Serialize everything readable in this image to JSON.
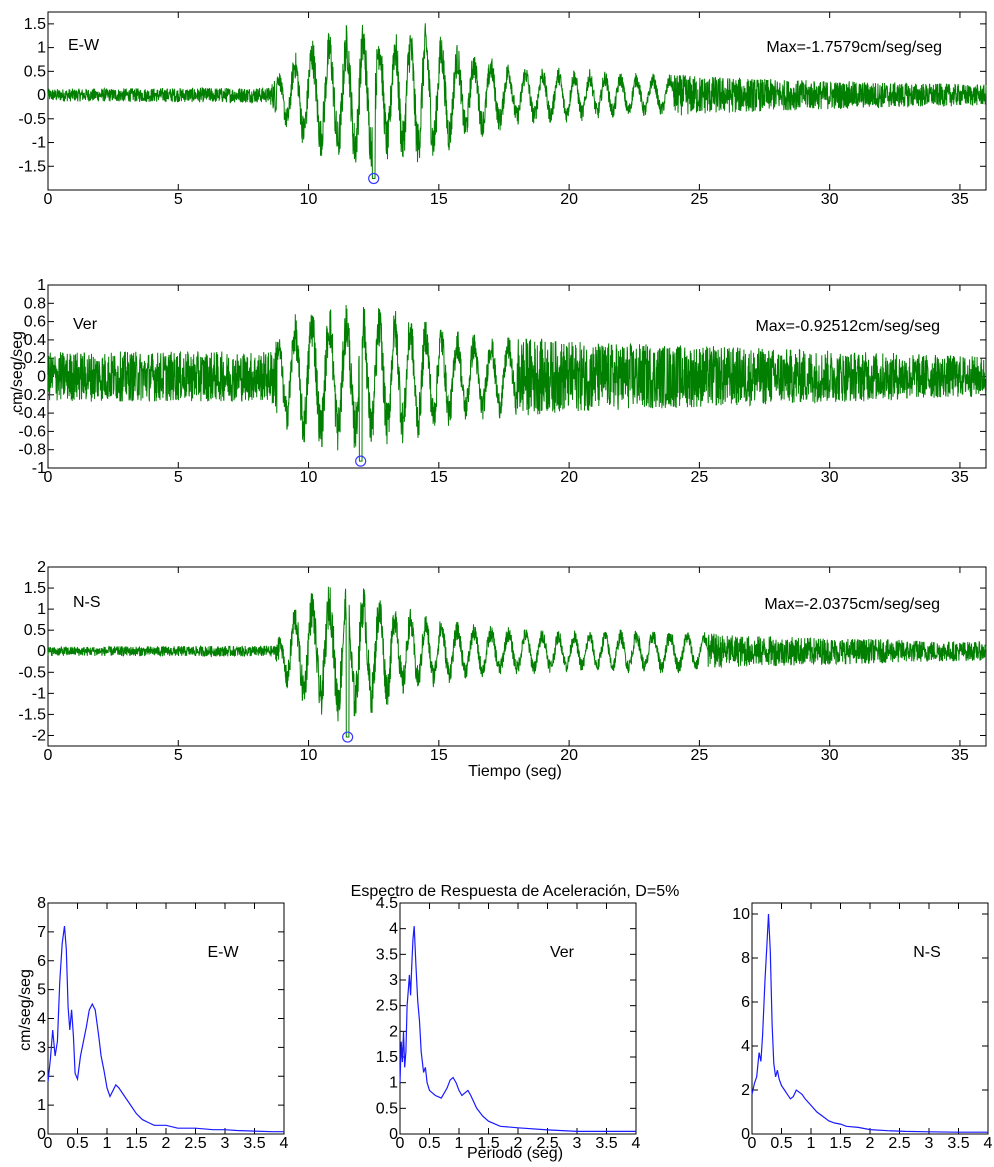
{
  "colors": {
    "trace": "#007f00",
    "spectrum": "#1a1aff",
    "marker": "#3a3aff",
    "axes": "#000000"
  },
  "chart_data": [
    {
      "type": "line",
      "panel": "E-W",
      "label": "E-W",
      "max_text": "Max=-1.7579cm/seg/seg",
      "xlim": [
        0,
        36
      ],
      "ylim": [
        -2,
        1.75
      ],
      "x_ticks": [
        "0",
        "5",
        "10",
        "15",
        "20",
        "25",
        "30",
        "35"
      ],
      "y_ticks": [
        "1.5",
        "1",
        "0.5",
        "0",
        "-0.5",
        "-1",
        "-1.5"
      ],
      "envelope": [
        [
          0,
          0.12
        ],
        [
          8.5,
          0.15
        ],
        [
          9,
          0.6
        ],
        [
          10,
          1.1
        ],
        [
          11,
          1.3
        ],
        [
          12,
          1.45
        ],
        [
          13,
          1.3
        ],
        [
          14.5,
          1.4
        ],
        [
          16,
          0.9
        ],
        [
          18,
          0.6
        ],
        [
          22,
          0.45
        ],
        [
          28,
          0.3
        ],
        [
          36,
          0.2
        ]
      ],
      "peak": {
        "t": 12.5,
        "value": -1.7579
      },
      "xlabel": "",
      "ylabel": "",
      "grid": false
    },
    {
      "type": "line",
      "panel": "Ver",
      "label": "Ver",
      "max_text": "Max=-0.92512cm/seg/seg",
      "xlim": [
        0,
        36
      ],
      "ylim": [
        -1,
        1
      ],
      "x_ticks": [
        "0",
        "5",
        "10",
        "15",
        "20",
        "25",
        "30",
        "35"
      ],
      "y_ticks": [
        "1",
        "0.8",
        "0.6",
        "0.4",
        "0.2",
        "0",
        "-0.2",
        "-0.4",
        "-0.6",
        "-0.8",
        "-1"
      ],
      "envelope": [
        [
          0,
          0.25
        ],
        [
          8.5,
          0.25
        ],
        [
          9,
          0.5
        ],
        [
          10,
          0.75
        ],
        [
          12,
          0.75
        ],
        [
          14,
          0.65
        ],
        [
          16,
          0.45
        ],
        [
          20,
          0.35
        ],
        [
          26,
          0.3
        ],
        [
          36,
          0.2
        ]
      ],
      "peak": {
        "t": 12.0,
        "value": -0.92512
      },
      "xlabel": "",
      "ylabel": "cm/seg/seg",
      "grid": false
    },
    {
      "type": "line",
      "panel": "N-S",
      "label": "N-S",
      "max_text": "Max=-2.0375cm/seg/seg",
      "xlim": [
        0,
        36
      ],
      "ylim": [
        -2.25,
        2
      ],
      "x_ticks": [
        "0",
        "5",
        "10",
        "15",
        "20",
        "25",
        "30",
        "35"
      ],
      "y_ticks": [
        "2",
        "1.5",
        "1",
        "0.5",
        "0",
        "-0.5",
        "-1",
        "-1.5",
        "-2"
      ],
      "envelope": [
        [
          0,
          0.1
        ],
        [
          8.7,
          0.12
        ],
        [
          9.2,
          0.9
        ],
        [
          10,
          1.3
        ],
        [
          11,
          1.55
        ],
        [
          12,
          1.5
        ],
        [
          13,
          1.2
        ],
        [
          14,
          0.9
        ],
        [
          16,
          0.6
        ],
        [
          20,
          0.45
        ],
        [
          24,
          0.5
        ],
        [
          26,
          0.35
        ],
        [
          36,
          0.2
        ]
      ],
      "peak": {
        "t": 11.5,
        "value": -2.0375
      },
      "xlabel": "Tiempo (seg)",
      "ylabel": "",
      "grid": false
    },
    {
      "type": "line",
      "panel": "E-W",
      "label": "E-W",
      "title": "Espectro de Respuesta de Aceleración, D=5%",
      "xlim": [
        0,
        4
      ],
      "ylim": [
        0,
        8
      ],
      "x_ticks": [
        "0",
        "0.5",
        "1",
        "1.5",
        "2",
        "2.5",
        "3",
        "3.5",
        "4"
      ],
      "y_ticks": [
        "8",
        "7",
        "6",
        "5",
        "4",
        "3",
        "2",
        "1",
        "0"
      ],
      "points": [
        [
          0,
          1.8
        ],
        [
          0.04,
          2.6
        ],
        [
          0.08,
          3.6
        ],
        [
          0.12,
          2.7
        ],
        [
          0.16,
          3.2
        ],
        [
          0.2,
          5.3
        ],
        [
          0.24,
          6.6
        ],
        [
          0.28,
          7.2
        ],
        [
          0.31,
          6.4
        ],
        [
          0.34,
          4.4
        ],
        [
          0.37,
          3.6
        ],
        [
          0.4,
          4.3
        ],
        [
          0.43,
          3.4
        ],
        [
          0.46,
          2.1
        ],
        [
          0.5,
          1.9
        ],
        [
          0.55,
          2.7
        ],
        [
          0.6,
          3.2
        ],
        [
          0.65,
          3.7
        ],
        [
          0.7,
          4.3
        ],
        [
          0.75,
          4.5
        ],
        [
          0.8,
          4.3
        ],
        [
          0.86,
          3.4
        ],
        [
          0.9,
          2.7
        ],
        [
          0.95,
          2.2
        ],
        [
          1.0,
          1.6
        ],
        [
          1.05,
          1.3
        ],
        [
          1.1,
          1.5
        ],
        [
          1.15,
          1.7
        ],
        [
          1.2,
          1.6
        ],
        [
          1.3,
          1.3
        ],
        [
          1.4,
          1.0
        ],
        [
          1.5,
          0.7
        ],
        [
          1.6,
          0.5
        ],
        [
          1.7,
          0.4
        ],
        [
          1.8,
          0.3
        ],
        [
          2.0,
          0.3
        ],
        [
          2.2,
          0.2
        ],
        [
          2.5,
          0.2
        ],
        [
          2.8,
          0.15
        ],
        [
          3.0,
          0.15
        ],
        [
          3.2,
          0.12
        ],
        [
          3.5,
          0.1
        ],
        [
          3.8,
          0.08
        ],
        [
          4.0,
          0.08
        ]
      ],
      "xlabel": "",
      "ylabel": "cm/seg/seg",
      "grid": false
    },
    {
      "type": "line",
      "panel": "Ver",
      "label": "Ver",
      "xlim": [
        0,
        4
      ],
      "ylim": [
        0,
        4.5
      ],
      "x_ticks": [
        "0",
        "0.5",
        "1",
        "1.5",
        "2",
        "2.5",
        "3",
        "3.5",
        "4"
      ],
      "y_ticks": [
        "4.5",
        "4",
        "3.5",
        "3",
        "2.5",
        "2",
        "1.5",
        "1",
        "0.5",
        "0"
      ],
      "points": [
        [
          0,
          1.0
        ],
        [
          0.02,
          1.8
        ],
        [
          0.04,
          1.4
        ],
        [
          0.06,
          2.0
        ],
        [
          0.08,
          1.3
        ],
        [
          0.1,
          1.6
        ],
        [
          0.12,
          2.5
        ],
        [
          0.14,
          2.8
        ],
        [
          0.16,
          3.1
        ],
        [
          0.18,
          2.7
        ],
        [
          0.2,
          3.3
        ],
        [
          0.22,
          3.8
        ],
        [
          0.24,
          4.05
        ],
        [
          0.27,
          3.3
        ],
        [
          0.3,
          2.6
        ],
        [
          0.33,
          2.2
        ],
        [
          0.36,
          1.6
        ],
        [
          0.4,
          1.2
        ],
        [
          0.43,
          1.3
        ],
        [
          0.46,
          1.0
        ],
        [
          0.5,
          0.85
        ],
        [
          0.55,
          0.8
        ],
        [
          0.6,
          0.75
        ],
        [
          0.7,
          0.7
        ],
        [
          0.8,
          0.9
        ],
        [
          0.85,
          1.05
        ],
        [
          0.9,
          1.1
        ],
        [
          0.95,
          1.0
        ],
        [
          1.0,
          0.85
        ],
        [
          1.05,
          0.75
        ],
        [
          1.1,
          0.8
        ],
        [
          1.15,
          0.85
        ],
        [
          1.2,
          0.75
        ],
        [
          1.3,
          0.5
        ],
        [
          1.4,
          0.35
        ],
        [
          1.5,
          0.25
        ],
        [
          1.7,
          0.15
        ],
        [
          2.0,
          0.12
        ],
        [
          2.5,
          0.08
        ],
        [
          3.0,
          0.05
        ],
        [
          3.5,
          0.05
        ],
        [
          4.0,
          0.05
        ]
      ],
      "xlabel": "Periodo (seg)",
      "ylabel": "",
      "grid": false
    },
    {
      "type": "line",
      "panel": "N-S",
      "label": "N-S",
      "xlim": [
        0,
        4
      ],
      "ylim": [
        0,
        10.5
      ],
      "x_ticks": [
        "0",
        "0.5",
        "1",
        "1.5",
        "2",
        "2.5",
        "3",
        "3.5",
        "4"
      ],
      "y_ticks": [
        "10",
        "8",
        "6",
        "4",
        "2",
        "0"
      ],
      "points": [
        [
          0,
          1.8
        ],
        [
          0.04,
          2.3
        ],
        [
          0.08,
          2.6
        ],
        [
          0.12,
          3.7
        ],
        [
          0.15,
          3.3
        ],
        [
          0.18,
          4.5
        ],
        [
          0.22,
          7.0
        ],
        [
          0.25,
          8.5
        ],
        [
          0.28,
          10.0
        ],
        [
          0.31,
          8.3
        ],
        [
          0.34,
          5.0
        ],
        [
          0.37,
          3.2
        ],
        [
          0.4,
          2.6
        ],
        [
          0.43,
          2.9
        ],
        [
          0.46,
          2.5
        ],
        [
          0.5,
          2.2
        ],
        [
          0.55,
          2.0
        ],
        [
          0.6,
          1.8
        ],
        [
          0.65,
          1.6
        ],
        [
          0.7,
          1.7
        ],
        [
          0.75,
          2.0
        ],
        [
          0.8,
          1.9
        ],
        [
          0.85,
          1.8
        ],
        [
          0.9,
          1.6
        ],
        [
          1.0,
          1.3
        ],
        [
          1.1,
          1.0
        ],
        [
          1.2,
          0.8
        ],
        [
          1.3,
          0.6
        ],
        [
          1.4,
          0.5
        ],
        [
          1.5,
          0.45
        ],
        [
          1.6,
          0.35
        ],
        [
          1.8,
          0.3
        ],
        [
          2.0,
          0.2
        ],
        [
          2.3,
          0.15
        ],
        [
          2.6,
          0.12
        ],
        [
          3.0,
          0.1
        ],
        [
          3.5,
          0.08
        ],
        [
          4.0,
          0.08
        ]
      ],
      "xlabel": "",
      "ylabel": "",
      "grid": false
    }
  ]
}
